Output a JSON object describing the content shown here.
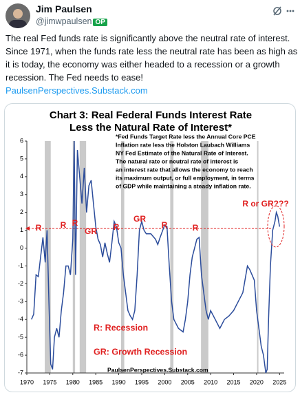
{
  "post": {
    "author": "Jim Paulsen",
    "handle": "@jimwpaulsen",
    "badge": "OP",
    "text_lines": [
      "The real Fed funds rate is significantly above the neutral rate of interest.",
      "Since 1971, when the funds rate less the neutral rate has been as high as",
      "it is today, the economy was either headed to a recession or a growth",
      "recession.  The Fed needs to ease!"
    ],
    "link": "PaulsenPerspectives.Substack.com"
  },
  "chart_data": {
    "type": "line",
    "title": "Chart 3: Real Federal Funds Interest Rate",
    "subtitle": "Less the Natural Rate of Interest*",
    "note_lines": [
      "*Fed Funds Target Rate less the Annual Core PCE",
      "Inflation rate less the Holston Laubach Williams",
      "NY Fed Estimate of the Natural Rate of Interest.",
      "The natural rate or neutral  rate of interest is",
      "an interest rate that allows the economy to reach",
      "its maximum output, or full employment, in terms",
      "of GDP while maintaining a steady inflation rate."
    ],
    "legend_lines": [
      "R:  Recession",
      "GR: Growth Recession"
    ],
    "source": "PaulsenPerspectives.Substack.com",
    "annotations": [
      "R",
      "R",
      "R",
      "GR",
      "R",
      "GR",
      "R",
      "R",
      "R or GR???"
    ],
    "color": "#2b4c9b",
    "reference_line": 1.1,
    "reference_color": "#e02020",
    "recessions": [
      [
        1973.9,
        1975.2
      ],
      [
        1980.0,
        1980.5
      ],
      [
        1981.5,
        1982.9
      ],
      [
        1990.5,
        1991.2
      ],
      [
        2001.2,
        2001.9
      ],
      [
        2007.9,
        2009.5
      ],
      [
        2020.1,
        2020.4
      ]
    ],
    "x": [
      1971.0,
      1971.5,
      1972.0,
      1972.5,
      1973.0,
      1973.5,
      1974.0,
      1974.4,
      1974.8,
      1975.2,
      1975.6,
      1976.0,
      1976.5,
      1977.0,
      1977.5,
      1978.0,
      1978.5,
      1979.0,
      1979.5,
      1980.0,
      1980.3,
      1980.6,
      1981.0,
      1981.5,
      1982.0,
      1982.5,
      1983.0,
      1983.5,
      1984.0,
      1984.5,
      1985.0,
      1985.5,
      1986.0,
      1986.5,
      1987.0,
      1987.5,
      1988.0,
      1988.5,
      1989.0,
      1989.5,
      1990.0,
      1990.5,
      1991.0,
      1991.5,
      1992.0,
      1992.5,
      1993.0,
      1993.5,
      1994.0,
      1994.5,
      1995.0,
      1995.5,
      1996.0,
      1997.0,
      1998.0,
      1998.5,
      1999.0,
      2000.0,
      2000.5,
      2001.0,
      2001.5,
      2002.0,
      2003.0,
      2004.0,
      2004.5,
      2005.0,
      2005.5,
      2006.0,
      2006.5,
      2007.0,
      2007.5,
      2008.0,
      2008.5,
      2009.0,
      2009.5,
      2010.0,
      2011.0,
      2012.0,
      2013.0,
      2014.0,
      2015.0,
      2016.0,
      2017.0,
      2018.0,
      2018.5,
      2019.0,
      2019.5,
      2020.0,
      2020.5,
      2021.0,
      2021.5,
      2022.0,
      2022.3,
      2022.6,
      2023.0,
      2023.5,
      2024.0,
      2024.3,
      2024.6,
      2025.0
    ],
    "values": [
      -4.0,
      -3.7,
      -1.5,
      -1.6,
      -0.5,
      0.6,
      -0.8,
      1.0,
      -3.0,
      -6.5,
      -6.8,
      -5.0,
      -4.5,
      -5.0,
      -3.5,
      -2.5,
      -1.0,
      -1.0,
      -1.5,
      0.5,
      6.0,
      -1.5,
      5.5,
      4.0,
      2.5,
      4.5,
      2.0,
      3.5,
      3.8,
      2.5,
      1.2,
      0.5,
      0.2,
      -0.5,
      0.3,
      -0.3,
      -0.8,
      0.3,
      1.5,
      1.2,
      0.3,
      0.0,
      -1.5,
      -2.5,
      -3.5,
      -3.8,
      -4.0,
      -3.5,
      -1.5,
      1.0,
      1.5,
      1.0,
      0.8,
      0.8,
      0.5,
      0.2,
      0.6,
      1.3,
      1.2,
      -1.0,
      -3.0,
      -4.0,
      -4.5,
      -4.7,
      -4.0,
      -3.0,
      -1.5,
      -0.5,
      0.0,
      0.5,
      0.6,
      -1.5,
      -2.5,
      -3.5,
      -4.0,
      -3.5,
      -4.0,
      -4.5,
      -4.0,
      -3.8,
      -3.5,
      -3.0,
      -2.5,
      -1.0,
      -1.2,
      -1.5,
      -1.8,
      -3.5,
      -4.5,
      -5.5,
      -6.0,
      -7.0,
      -6.8,
      -4.0,
      -1.0,
      1.0,
      1.5,
      2.0,
      1.8,
      1.2
    ],
    "xlim": [
      1970,
      2026
    ],
    "xticks": [
      1970,
      1975,
      1980,
      1985,
      1990,
      1995,
      2000,
      2005,
      2010,
      2015,
      2020,
      2025
    ],
    "ylim": [
      -7,
      6
    ],
    "yticks": [
      -7,
      -6,
      -5,
      -4,
      -3,
      -2,
      -1,
      0,
      1,
      2,
      3,
      4,
      5,
      6
    ]
  }
}
